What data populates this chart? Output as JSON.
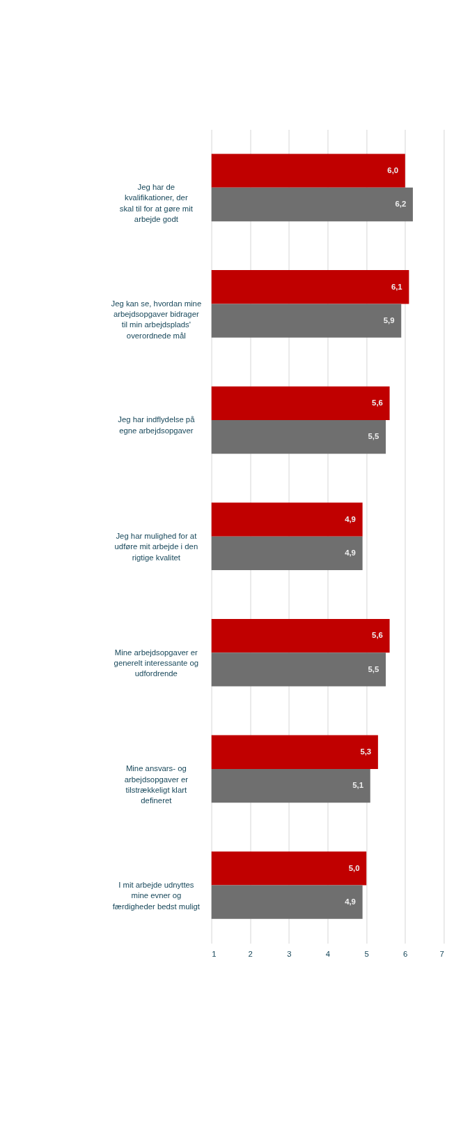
{
  "chart_data": {
    "type": "bar",
    "orientation": "horizontal",
    "categories": [
      "Jeg har de kvalifikationer, der skal til for at gøre mit arbejde godt",
      "Jeg kan se, hvordan mine arbejdsopgaver bidrager til min arbejdsplads' overordnede mål",
      "Jeg har indflydelse på egne arbejdsopgaver",
      "Jeg har mulighed for at udføre mit arbejde i den rigtige kvalitet",
      "Mine arbejdsopgaver er generelt interessante og udfordrende",
      "Mine ansvars- og arbejdsopgaver er tilstrækkeligt klart defineret",
      "I mit arbejde udnyttes mine evner og færdigheder bedst muligt"
    ],
    "series": [
      {
        "color": "#c00000",
        "values": [
          6.0,
          6.1,
          5.6,
          4.9,
          5.6,
          5.3,
          5.0
        ],
        "value_labels": [
          "6,0",
          "6,1",
          "5,6",
          "4,9",
          "5,6",
          "5,3",
          "5,0"
        ]
      },
      {
        "color": "#6f6f6f",
        "values": [
          6.2,
          5.9,
          5.5,
          4.9,
          5.5,
          5.1,
          4.9
        ],
        "value_labels": [
          "6,2",
          "5,9",
          "5,5",
          "4,9",
          "5,5",
          "5,1",
          "4,9"
        ]
      }
    ],
    "xlim": [
      1,
      7
    ],
    "xticks": [
      1,
      2,
      3,
      4,
      5,
      6,
      7
    ],
    "grid": "x",
    "legend": false
  }
}
